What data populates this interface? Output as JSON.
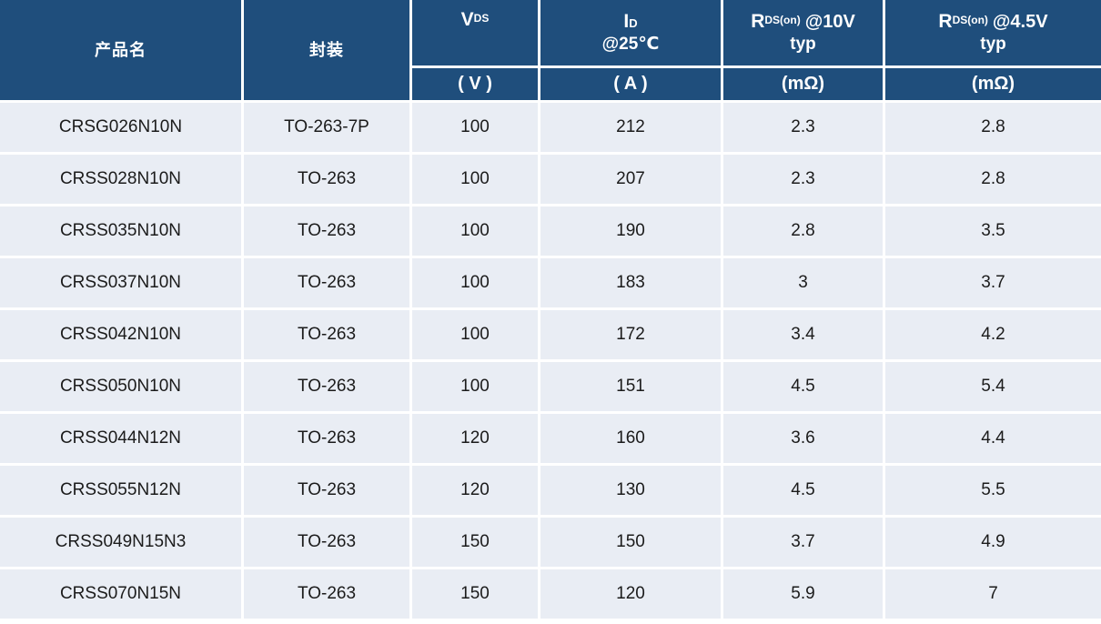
{
  "header": {
    "product_label": "产品名",
    "package_label": "封装",
    "vds": {
      "base": "V",
      "sub": "DS",
      "unit": "( V )"
    },
    "id": {
      "base": "I",
      "sub": "D",
      "line2": "@25℃",
      "unit": "( A )"
    },
    "rds10": {
      "base": "R",
      "sub": "DS(on)",
      "rest": "@10V",
      "line2": "typ",
      "unit": "(mΩ)"
    },
    "rds45": {
      "base": "R",
      "sub": "DS(on)",
      "rest": "@4.5V",
      "line2": "typ",
      "unit": "(mΩ)"
    }
  },
  "rows": [
    [
      "CRSG026N10N",
      "TO-263-7P",
      "100",
      "212",
      "2.3",
      "2.8"
    ],
    [
      "CRSS028N10N",
      "TO-263",
      "100",
      "207",
      "2.3",
      "2.8"
    ],
    [
      "CRSS035N10N",
      "TO-263",
      "100",
      "190",
      "2.8",
      "3.5"
    ],
    [
      "CRSS037N10N",
      "TO-263",
      "100",
      "183",
      "3",
      "3.7"
    ],
    [
      "CRSS042N10N",
      "TO-263",
      "100",
      "172",
      "3.4",
      "4.2"
    ],
    [
      "CRSS050N10N",
      "TO-263",
      "100",
      "151",
      "4.5",
      "5.4"
    ],
    [
      "CRSS044N12N",
      "TO-263",
      "120",
      "160",
      "3.6",
      "4.4"
    ],
    [
      "CRSS055N12N",
      "TO-263",
      "120",
      "130",
      "4.5",
      "5.5"
    ],
    [
      "CRSS049N15N3",
      "TO-263",
      "150",
      "150",
      "3.7",
      "4.9"
    ],
    [
      "CRSS070N15N",
      "TO-263",
      "150",
      "120",
      "5.9",
      "7"
    ]
  ],
  "colors": {
    "header_bg": "#1F4E7C",
    "row_bg": "#E9EDF4",
    "grid_line": "#FFFFFF",
    "header_text": "#FFFFFF",
    "body_text": "#1B1B1B"
  }
}
